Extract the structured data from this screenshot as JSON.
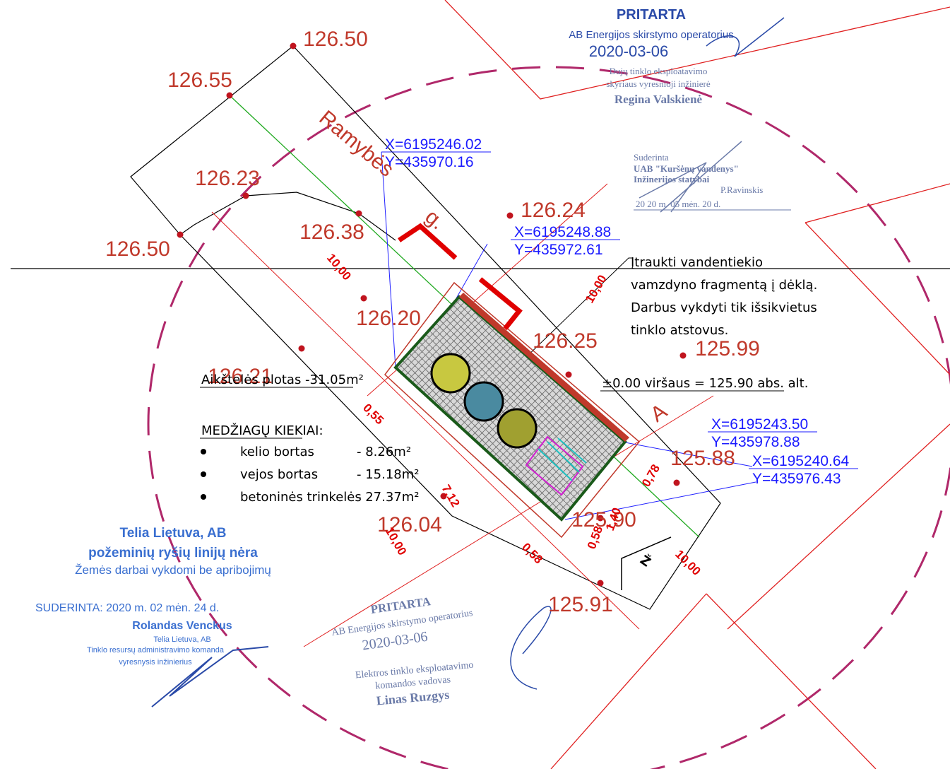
{
  "elevations": [
    "126.50",
    "126.55",
    "126.23",
    "126.50",
    "126.38",
    "126.20",
    "126.21",
    "126.24",
    "126.25",
    "125.99",
    "125.88",
    "126.04",
    "125.90",
    "125.91"
  ],
  "coordinates": [
    {
      "x": "X=6195246.02",
      "y": "Y=435970.16"
    },
    {
      "x": "X=6195248.88",
      "y": "Y=435972.61"
    },
    {
      "x": "X=6195243.50",
      "y": "Y=435978.88"
    },
    {
      "x": "X=6195240.64",
      "y": "Y=435976.43"
    }
  ],
  "street": [
    "Ramybės",
    "g."
  ],
  "dimensions": [
    "10,00",
    "10,00",
    "0,55",
    "7,12",
    "10,00",
    "0,78",
    "0,58",
    "0,58",
    "1,40",
    "10,00"
  ],
  "note": [
    "Įtraukti vandentiekio",
    "vamzdyno fragmentą į dėklą.",
    "Darbus vykdyti tik išsikvietus",
    "tinklo atstovus."
  ],
  "zero_level": "±0.00 viršaus = 125.90 abs. alt.",
  "area": "Aikštelės plotas  -31.05m²",
  "materials": {
    "title": "MEDŽIAGŲ KIEKIAI:",
    "items": [
      {
        "name": "kelio bortas",
        "qty": "- 8.26m²"
      },
      {
        "name": "vejos bortas",
        "qty": "- 15.18m²"
      },
      {
        "name": "betoninės trinkelės",
        "qty": "- 27.37m²"
      }
    ]
  },
  "markers": [
    "A",
    "Ž"
  ],
  "stamps": {
    "gas": [
      "PRITARTA",
      "AB Energijos skirstymo operatorius",
      "2020-03-06",
      "Dujų tinklo eksploatavimo",
      "skyriaus vyresnioji inžinierė",
      "Regina Valskienė"
    ],
    "water": [
      "Suderinta",
      "UAB \"Kuršėnų vandenys\"",
      "Inžinerijos statybai",
      "P.Ravinskis",
      "20 20 m. 05 mėn. 20 d."
    ],
    "telia": [
      "Telia Lietuva, AB",
      "požeminių ryšių linijų nėra",
      "Žemės darbai vykdomi be apribojimų",
      "SUDERINTA: 2020 m. 02 mėn. 24 d.",
      "Rolandas Venckus",
      "Telia Lietuva, AB",
      "Tinklo resursų administravimo komanda",
      "vyresnysis inžinierius"
    ],
    "electric": [
      "PRITARTA",
      "AB Energijos skirstymo operatorius",
      "2020-03-06",
      "Elektros tinklo eksploatavimo",
      "komandos vadovas",
      "Linas Ruzgys"
    ]
  }
}
